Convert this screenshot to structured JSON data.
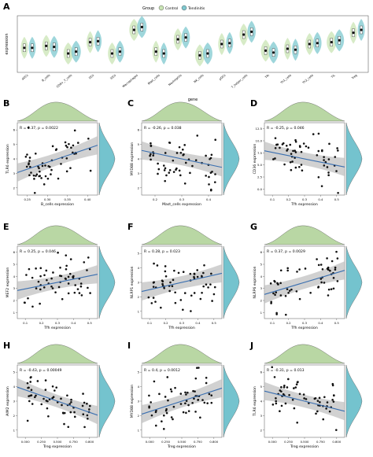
{
  "colors": {
    "control": "#c9e4b4",
    "tendinitis": "#7ec8cf",
    "density_fill": "#b9d7a4",
    "density_right": "#74c3ce",
    "fit_line": "#3a6fb0",
    "ci_band": "#bdbdbd"
  },
  "panelA": {
    "letter": "A",
    "legend_title": "Group",
    "legend_items": [
      "Control",
      "Tendinitis"
    ],
    "ylabel": "expression",
    "xlabel": "gene",
    "categories": [
      "aDCs",
      "B_cells",
      "CD8+_T_cells",
      "DCs",
      "iDCs",
      "Macrophages",
      "Mast_cells",
      "Neutrophils",
      "NK_cells",
      "pDCs",
      "T_helper_cells",
      "Tfh",
      "Th1_cells",
      "Th2_cells",
      "TIL",
      "Treg"
    ],
    "control_medians": [
      0.36,
      0.38,
      0.3,
      0.42,
      0.3,
      0.55,
      0.32,
      0.45,
      0.28,
      0.4,
      0.5,
      0.33,
      0.35,
      0.4,
      0.42,
      0.52
    ],
    "tendinitis_medians": [
      0.36,
      0.37,
      0.32,
      0.43,
      0.32,
      0.58,
      0.3,
      0.47,
      0.3,
      0.41,
      0.53,
      0.31,
      0.34,
      0.41,
      0.44,
      0.55
    ]
  },
  "chart_data": [
    {
      "panel": "B",
      "type": "scatter",
      "title": "B",
      "annotation": "R = 0.37, p = 0.0022",
      "xlabel": "B_cells expression",
      "ylabel": "TLR6 expression",
      "xlim": [
        0.22,
        0.44
      ],
      "ylim": [
        1.5,
        6.5
      ],
      "xticks": [
        "0.25",
        "0.30",
        "0.35",
        "0.40"
      ],
      "yticks": [
        "2",
        "3",
        "4",
        "5",
        "6"
      ],
      "slope": 0.42,
      "intercept": 2.9,
      "seed": 11
    },
    {
      "panel": "C",
      "type": "scatter",
      "title": "C",
      "annotation": "R = -0.26, p = 0.038",
      "xlabel": "Mast_cells expression",
      "ylabel": "MYD88 expression",
      "xlim": [
        0.18,
        0.42
      ],
      "ylim": [
        1.5,
        6.5
      ],
      "xticks": [
        "0.2",
        "0.3",
        "0.4"
      ],
      "yticks": [
        "2",
        "3",
        "4",
        "5",
        "6"
      ],
      "slope": -0.26,
      "intercept": 4.0,
      "seed": 23
    },
    {
      "panel": "D",
      "type": "scatter",
      "title": "D",
      "annotation": "R = -0.25, p = 0.046",
      "xlabel": "Tfh expression",
      "ylabel": "CD36 expression",
      "xlim": [
        0.05,
        0.55
      ],
      "ylim": [
        0,
        14
      ],
      "xticks": [
        "0.1",
        "0.2",
        "0.3",
        "0.4",
        "0.5"
      ],
      "yticks": [
        "0.0",
        "2.5",
        "5.0",
        "7.5",
        "10.0",
        "12.5"
      ],
      "slope": -0.25,
      "intercept": 7.5,
      "seed": 37
    },
    {
      "panel": "E",
      "type": "scatter",
      "title": "E",
      "annotation": "R = 0.25, p = 0.046",
      "xlabel": "Tfh expression",
      "ylabel": "MEF2 expression",
      "xlim": [
        0.05,
        0.55
      ],
      "ylim": [
        0.5,
        6.5
      ],
      "xticks": [
        "0.1",
        "0.2",
        "0.3",
        "0.4",
        "0.5"
      ],
      "yticks": [
        "1",
        "2",
        "3",
        "4",
        "5",
        "6"
      ],
      "slope": 0.25,
      "intercept": 2.8,
      "seed": 41
    },
    {
      "panel": "F",
      "type": "scatter",
      "title": "F",
      "annotation": "R = 0.28, p = 0.023",
      "xlabel": "Tfh expression",
      "ylabel": "NLRP1 expression",
      "xlim": [
        0.05,
        0.55
      ],
      "ylim": [
        0.5,
        5.5
      ],
      "xticks": [
        "0.1",
        "0.2",
        "0.3",
        "0.4",
        "0.5"
      ],
      "yticks": [
        "1",
        "2",
        "3",
        "4",
        "5"
      ],
      "slope": 0.28,
      "intercept": 2.6,
      "seed": 53
    },
    {
      "panel": "G",
      "type": "scatter",
      "title": "G",
      "annotation": "R = 0.37, p = 0.0029",
      "xlabel": "Tfh expression",
      "ylabel": "NLRP6 expression",
      "xlim": [
        0.05,
        0.55
      ],
      "ylim": [
        0.5,
        6.5
      ],
      "xticks": [
        "0.1",
        "0.2",
        "0.3",
        "0.4",
        "0.5"
      ],
      "yticks": [
        "1",
        "2",
        "3",
        "4",
        "5",
        "6"
      ],
      "slope": 0.37,
      "intercept": 3.0,
      "seed": 67
    },
    {
      "panel": "H",
      "type": "scatter",
      "title": "H",
      "annotation": "R = -0.43, p = 0.00049",
      "xlabel": "Treg expression",
      "ylabel": "AIM2 expression",
      "xlim": [
        0.0,
        0.8
      ],
      "ylim": [
        0.5,
        5.5
      ],
      "xticks": [
        "0.000",
        "0.250",
        "0.500",
        "0.750",
        "0.800"
      ],
      "yticks": [
        "1",
        "2",
        "3",
        "4",
        "5"
      ],
      "slope": -0.43,
      "intercept": 3.0,
      "seed": 71
    },
    {
      "panel": "I",
      "type": "scatter",
      "title": "I",
      "annotation": "R = 0.4, p = 0.0012",
      "xlabel": "Treg expression",
      "ylabel": "MYD88 expression",
      "xlim": [
        0.0,
        0.8
      ],
      "ylim": [
        0.5,
        5.5
      ],
      "xticks": [
        "0.000",
        "0.250",
        "0.500",
        "0.750",
        "0.800"
      ],
      "yticks": [
        "1",
        "2",
        "3",
        "4",
        "5"
      ],
      "slope": 0.4,
      "intercept": 2.6,
      "seed": 83
    },
    {
      "panel": "J",
      "type": "scatter",
      "title": "J",
      "annotation": "R = -0.31, p = 0.013",
      "xlabel": "Treg expression",
      "ylabel": "TLR6 expression",
      "xlim": [
        0.0,
        0.8
      ],
      "ylim": [
        1.5,
        6.5
      ],
      "xticks": [
        "0.000",
        "0.250",
        "0.500",
        "0.750",
        "0.800"
      ],
      "yticks": [
        "2",
        "3",
        "4",
        "5",
        "6"
      ],
      "slope": -0.31,
      "intercept": 3.6,
      "seed": 97
    }
  ]
}
